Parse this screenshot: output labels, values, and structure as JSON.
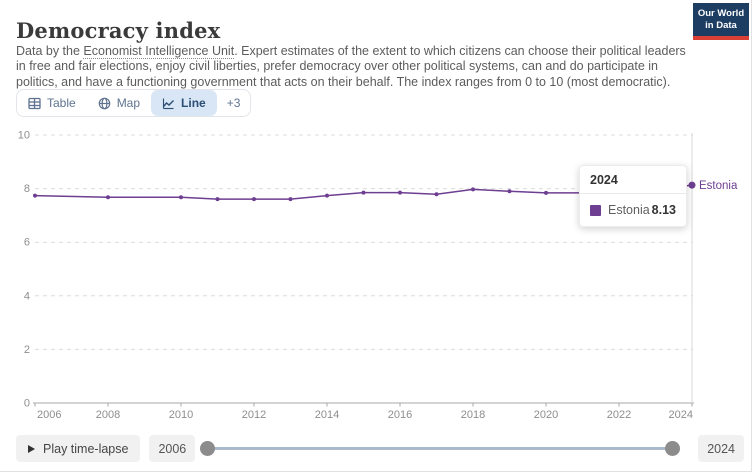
{
  "header": {
    "title": "Democracy index",
    "subtitle_pre": "Data by the ",
    "subtitle_link": "Economist Intelligence Unit",
    "subtitle_post": ". Expert estimates of the extent to which citizens can choose their political leaders in free and fair elections, enjoy civil liberties, prefer democracy over other political systems, can and do participate in politics, and have a functioning government that acts on their behalf. The index ranges from 0 to 10 (most democratic).",
    "logo_line1": "Our World",
    "logo_line2": "in Data"
  },
  "tabs": {
    "table": "Table",
    "map": "Map",
    "line": "Line",
    "more": "+3"
  },
  "tooltip": {
    "year": "2024",
    "series": "Estonia",
    "value": "8.13",
    "swatch_color": "#6d3e91"
  },
  "timeline": {
    "play_label": "Play time-lapse",
    "start_year": "2006",
    "end_year": "2024"
  },
  "colors": {
    "accent_purple": "#6d3e91",
    "logo_navy": "#1d3d63",
    "logo_red": "#dc3f34",
    "selected_tab_bg": "#d8e6f5",
    "gridline": "#dcdcdc",
    "axis": "#a8a8a8",
    "tick_label": "#8e8e8e",
    "crosshair": "#d9d9d9"
  },
  "chart_data": {
    "type": "line",
    "title": "Democracy index",
    "xlabel": "",
    "ylabel": "",
    "xlim": [
      2006,
      2024
    ],
    "ylim": [
      0,
      10
    ],
    "x_ticks": [
      2006,
      2008,
      2010,
      2012,
      2014,
      2016,
      2018,
      2020,
      2022,
      2024
    ],
    "y_ticks": [
      0,
      2,
      4,
      6,
      8,
      10
    ],
    "grid": "horizontal-dashed",
    "legend_position": "end-of-line-label",
    "hover_year": 2024,
    "series": [
      {
        "name": "Estonia",
        "color": "#6d3e91",
        "points": [
          [
            2006,
            7.74
          ],
          [
            2008,
            7.68
          ],
          [
            2010,
            7.68
          ],
          [
            2011,
            7.61
          ],
          [
            2012,
            7.61
          ],
          [
            2013,
            7.61
          ],
          [
            2014,
            7.74
          ],
          [
            2015,
            7.85
          ],
          [
            2016,
            7.85
          ],
          [
            2017,
            7.79
          ],
          [
            2018,
            7.97
          ],
          [
            2019,
            7.9
          ],
          [
            2020,
            7.84
          ],
          [
            2021,
            7.84
          ],
          [
            2022,
            7.96
          ],
          [
            2023,
            7.96
          ],
          [
            2024,
            8.13
          ]
        ]
      }
    ]
  }
}
